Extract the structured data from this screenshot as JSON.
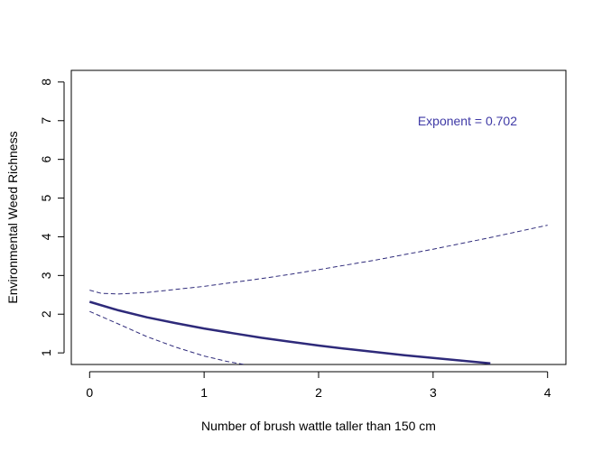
{
  "chart_data": {
    "type": "line",
    "title": "",
    "xlabel": "Number of brush wattle taller than 150 cm",
    "ylabel": "Environmental Weed Richness",
    "xlim": [
      -0.16,
      4.16
    ],
    "ylim": [
      0.7,
      8.3
    ],
    "xticks": [
      0,
      1,
      2,
      3,
      4
    ],
    "xtick_labels": [
      "0",
      "1",
      "2",
      "3",
      "4"
    ],
    "yticks": [
      1,
      2,
      3,
      4,
      5,
      6,
      7,
      8
    ],
    "ytick_labels": [
      "1",
      "2",
      "3",
      "4",
      "5",
      "6",
      "7",
      "8"
    ],
    "grid": false,
    "series": [
      {
        "role": "fit",
        "style": "solid",
        "color": "#2e2a7a",
        "x": [
          0,
          0.25,
          0.5,
          0.75,
          1.0,
          1.25,
          1.5,
          1.75,
          2.0,
          2.25,
          2.5,
          2.75,
          3.0,
          3.25,
          3.5
        ],
        "y": [
          2.32,
          2.1,
          1.92,
          1.77,
          1.63,
          1.51,
          1.39,
          1.29,
          1.19,
          1.1,
          1.02,
          0.94,
          0.87,
          0.8,
          0.73
        ]
      },
      {
        "role": "upper",
        "style": "dashed",
        "color": "#2e2a7a",
        "x": [
          0,
          0.1,
          0.25,
          0.5,
          0.75,
          1.0,
          1.25,
          1.5,
          1.75,
          2.0,
          2.5,
          3.0,
          3.5,
          4.0
        ],
        "y": [
          2.62,
          2.54,
          2.52,
          2.56,
          2.64,
          2.72,
          2.82,
          2.92,
          3.03,
          3.15,
          3.4,
          3.68,
          3.98,
          4.3
        ]
      },
      {
        "role": "lower",
        "style": "dashed",
        "color": "#2e2a7a",
        "x": [
          0,
          0.25,
          0.5,
          0.75,
          1.0,
          1.2,
          1.35
        ],
        "y": [
          2.07,
          1.75,
          1.42,
          1.15,
          0.92,
          0.78,
          0.7
        ]
      }
    ],
    "annotations": [
      {
        "text": "Exponent =  0.702",
        "x": 3.3,
        "y": 7.0,
        "color": "#3f3aa6"
      }
    ]
  }
}
